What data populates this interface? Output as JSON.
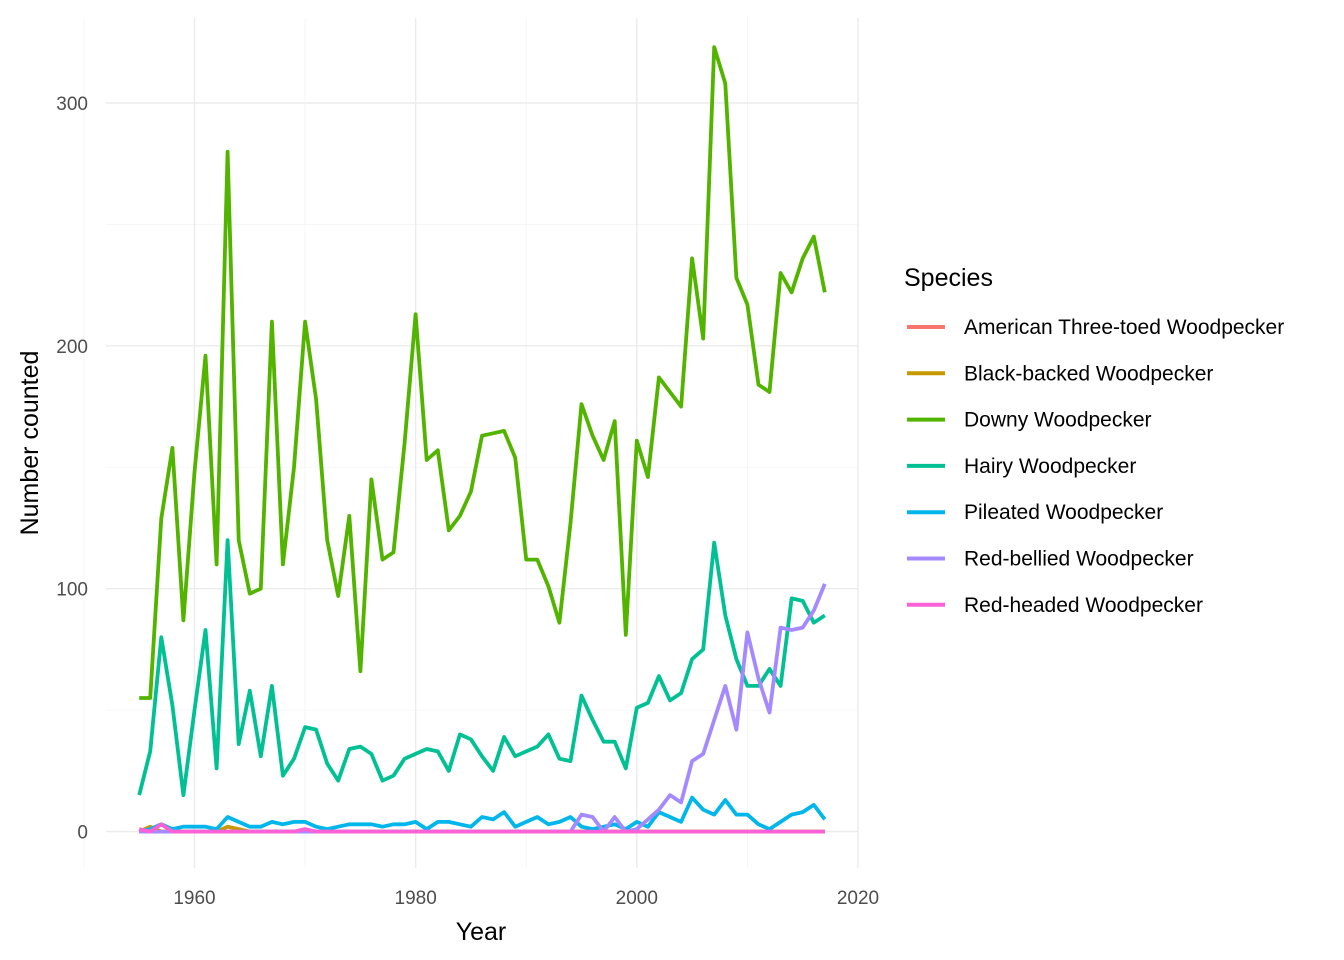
{
  "chart_data": {
    "type": "line",
    "title": "",
    "xlabel": "Year",
    "ylabel": "Number counted",
    "xlim": [
      1952,
      2020
    ],
    "ylim": [
      -15,
      335
    ],
    "x_ticks": [
      1960,
      1980,
      2000,
      2020
    ],
    "y_ticks": [
      0,
      100,
      200,
      300
    ],
    "x_tick_labels": [
      "1960",
      "1980",
      "2000",
      "2020"
    ],
    "y_tick_labels": [
      "0",
      "100",
      "200",
      "300"
    ],
    "grid": true,
    "legend": {
      "title": "Species",
      "placement": "right"
    },
    "x": [
      1955,
      1956,
      1957,
      1958,
      1959,
      1960,
      1961,
      1962,
      1963,
      1964,
      1965,
      1966,
      1967,
      1968,
      1969,
      1970,
      1971,
      1972,
      1973,
      1974,
      1975,
      1976,
      1977,
      1978,
      1979,
      1980,
      1981,
      1982,
      1983,
      1984,
      1985,
      1986,
      1987,
      1988,
      1989,
      1990,
      1991,
      1992,
      1993,
      1994,
      1995,
      1996,
      1997,
      1998,
      1999,
      2000,
      2001,
      2002,
      2003,
      2004,
      2005,
      2006,
      2007,
      2008,
      2009,
      2010,
      2011,
      2012,
      2013,
      2014,
      2015,
      2016,
      2017
    ],
    "series": [
      {
        "name": "American Three-toed Woodpecker",
        "color": "#F8766D",
        "values": [
          0,
          0,
          0,
          0,
          0,
          0,
          0,
          0,
          0,
          0,
          0,
          0,
          0,
          0,
          0,
          0,
          0,
          0,
          0,
          0,
          0,
          0,
          0,
          0,
          0,
          0,
          0,
          0,
          0,
          0,
          0,
          0,
          0,
          0,
          0,
          0,
          0,
          0,
          0,
          0,
          0,
          0,
          0,
          0,
          0,
          0,
          0,
          0,
          0,
          0,
          0,
          0,
          0,
          0,
          0,
          0,
          0,
          0,
          0,
          0,
          0,
          0,
          0
        ]
      },
      {
        "name": "Black-backed Woodpecker",
        "color": "#C49A00",
        "values": [
          0,
          2,
          0,
          0,
          0,
          0,
          0,
          0,
          2,
          1,
          0,
          0,
          0,
          0,
          0,
          0,
          0,
          0,
          0,
          0,
          0,
          0,
          0,
          0,
          0,
          0,
          0,
          0,
          0,
          0,
          0,
          0,
          0,
          0,
          0,
          0,
          0,
          0,
          0,
          0,
          0,
          0,
          0,
          0,
          0,
          0,
          0,
          0,
          0,
          0,
          0,
          0,
          0,
          0,
          0,
          0,
          0,
          0,
          0,
          0,
          0,
          0,
          0
        ]
      },
      {
        "name": "Downy Woodpecker",
        "color": "#53B400",
        "values": [
          55,
          55,
          129,
          158,
          87,
          148,
          196,
          110,
          280,
          120,
          98,
          100,
          210,
          110,
          150,
          210,
          178,
          120,
          97,
          130,
          66,
          145,
          112,
          115,
          160,
          213,
          153,
          157,
          124,
          130,
          140,
          163,
          164,
          165,
          154,
          112,
          112,
          101,
          86,
          127,
          176,
          163,
          153,
          169,
          81,
          161,
          146,
          187,
          181,
          175,
          236,
          203,
          323,
          308,
          228,
          217,
          184,
          181,
          230,
          222,
          236,
          245,
          222
        ]
      },
      {
        "name": "Hairy Woodpecker",
        "color": "#00C094",
        "values": [
          15,
          33,
          80,
          52,
          15,
          50,
          83,
          26,
          120,
          36,
          58,
          31,
          60,
          23,
          30,
          43,
          42,
          28,
          21,
          34,
          35,
          32,
          21,
          23,
          30,
          32,
          34,
          33,
          25,
          40,
          38,
          31,
          25,
          39,
          31,
          33,
          35,
          40,
          30,
          29,
          56,
          46,
          37,
          37,
          26,
          51,
          53,
          64,
          54,
          57,
          71,
          75,
          119,
          89,
          71,
          60,
          60,
          67,
          60,
          96,
          95,
          86,
          89
        ]
      },
      {
        "name": "Pileated Woodpecker",
        "color": "#00B6EB",
        "values": [
          0,
          1,
          3,
          1,
          2,
          2,
          2,
          1,
          6,
          4,
          2,
          2,
          4,
          3,
          4,
          4,
          2,
          1,
          2,
          3,
          3,
          3,
          2,
          3,
          3,
          4,
          1,
          4,
          4,
          3,
          2,
          6,
          5,
          8,
          2,
          4,
          6,
          3,
          4,
          6,
          2,
          1,
          2,
          3,
          1,
          4,
          2,
          8,
          6,
          4,
          14,
          9,
          7,
          13,
          7,
          7,
          3,
          1,
          4,
          7,
          8,
          11,
          5
        ]
      },
      {
        "name": "Red-bellied Woodpecker",
        "color": "#A58AFF",
        "values": [
          0,
          0,
          0,
          0,
          0,
          0,
          0,
          0,
          0,
          0,
          0,
          0,
          0,
          0,
          0,
          0,
          0,
          0,
          0,
          0,
          0,
          0,
          0,
          0,
          0,
          0,
          0,
          0,
          0,
          0,
          0,
          0,
          0,
          0,
          0,
          0,
          0,
          0,
          0,
          0,
          7,
          6,
          0,
          6,
          0,
          1,
          5,
          9,
          15,
          12,
          29,
          32,
          46,
          60,
          42,
          82,
          63,
          49,
          84,
          83,
          84,
          91,
          102
        ]
      },
      {
        "name": "Red-headed Woodpecker",
        "color": "#FB61D7",
        "values": [
          1,
          0,
          3,
          0,
          0,
          0,
          0,
          0,
          0,
          0,
          0,
          0,
          0,
          0,
          0,
          1,
          0,
          0,
          0,
          0,
          0,
          0,
          0,
          0,
          0,
          0,
          0,
          0,
          0,
          0,
          0,
          0,
          0,
          0,
          0,
          0,
          0,
          0,
          0,
          0,
          0,
          0,
          0,
          0,
          0,
          0,
          0,
          0,
          0,
          0,
          0,
          0,
          0,
          0,
          0,
          0,
          0,
          0,
          0,
          0,
          0,
          0,
          0
        ]
      }
    ]
  }
}
